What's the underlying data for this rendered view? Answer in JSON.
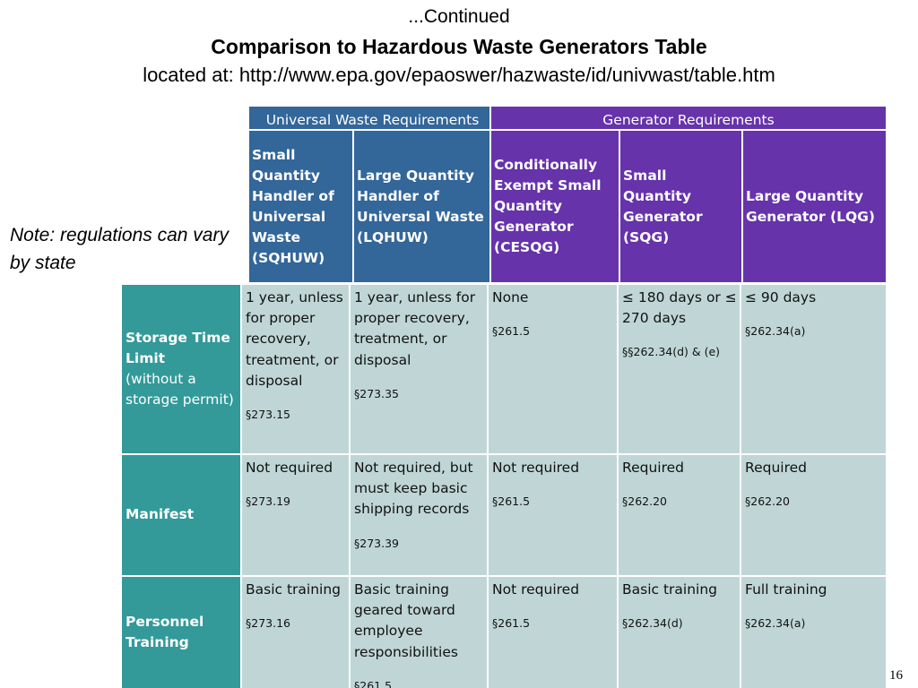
{
  "heading": {
    "continued": "...Continued",
    "title": "Comparison to Hazardous Waste Generators Table",
    "located": "located at: http://www.epa.gov/epaoswer/hazwaste/id/univwast/table.htm"
  },
  "note": "Note: regulations can vary by state",
  "page_number": "16",
  "table": {
    "categories": {
      "universal": "Universal Waste Requirements",
      "generator": "Generator Requirements"
    },
    "columns": [
      "Small Quantity Handler of Universal Waste (SQHUW)",
      "Large Quantity Handler of Universal Waste (LQHUW)",
      "Conditionally Exempt Small Quantity Generator (CESQG)",
      "Small Quantity Generator (SQG)",
      "Large Quantity Generator (LQG)"
    ],
    "rows": [
      {
        "label": "Storage Time Limit",
        "sublabel": "(without a storage permit)",
        "cells": [
          {
            "text": "1 year, unless for proper recovery, treatment, or disposal",
            "ref": "§273.15"
          },
          {
            "text": "1 year, unless for proper recovery, treatment, or disposal",
            "ref": "§273.35"
          },
          {
            "text": "None",
            "ref": "§261.5"
          },
          {
            "text": "≤ 180 days or ≤ 270 days",
            "ref": "§§262.34(d) & (e)"
          },
          {
            "text": "≤ 90 days",
            "ref": "§262.34(a)"
          }
        ]
      },
      {
        "label": "Manifest",
        "sublabel": "",
        "cells": [
          {
            "text": "Not required",
            "ref": "§273.19"
          },
          {
            "text": "Not required, but must keep basic shipping records",
            "ref": "§273.39"
          },
          {
            "text": "Not required",
            "ref": "§261.5"
          },
          {
            "text": "Required",
            "ref": "§262.20"
          },
          {
            "text": "Required",
            "ref": "§262.20"
          }
        ]
      },
      {
        "label": "Personnel Training",
        "sublabel": "",
        "cells": [
          {
            "text": "Basic training",
            "ref": "§273.16"
          },
          {
            "text": "Basic training geared toward employee responsibilities",
            "ref": "§261.5"
          },
          {
            "text": "Not required",
            "ref": "§261.5"
          },
          {
            "text": "Basic training",
            "ref": "§262.34(d)"
          },
          {
            "text": "Full training",
            "ref": "§262.34(a)"
          }
        ]
      }
    ]
  }
}
